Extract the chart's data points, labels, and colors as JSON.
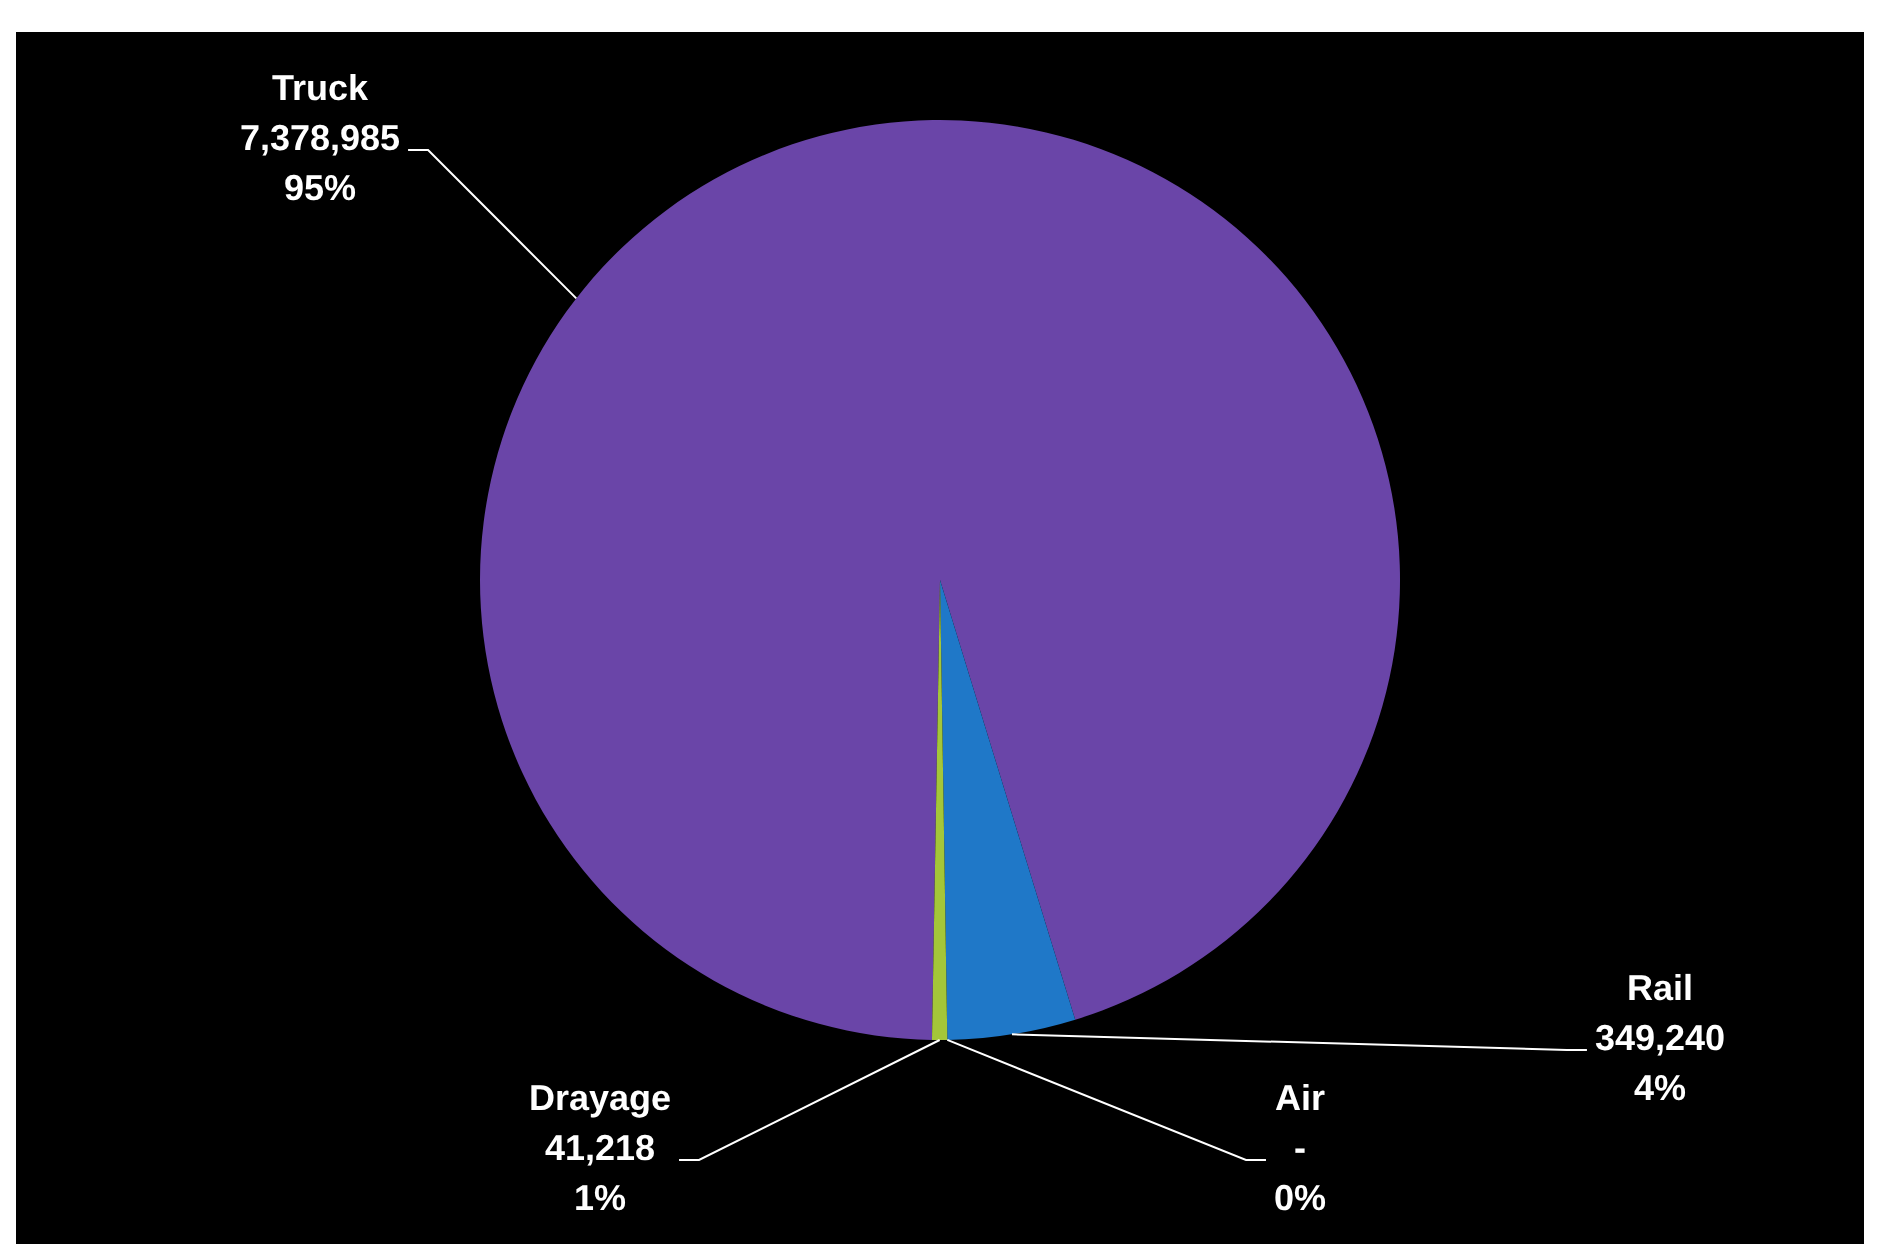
{
  "chart_data": {
    "type": "pie",
    "categories": [
      "Truck",
      "Rail",
      "Air",
      "Drayage"
    ],
    "values": [
      7378985,
      349240,
      0,
      41218
    ],
    "colors": [
      "#6a45a8",
      "#1f78c8",
      "#2aa0a0",
      "#a4c639"
    ],
    "value_labels": [
      "7,378,985\n95%",
      "349,240\n4%",
      "-\n0%",
      "41,218\n1%"
    ],
    "legend": false
  }
}
